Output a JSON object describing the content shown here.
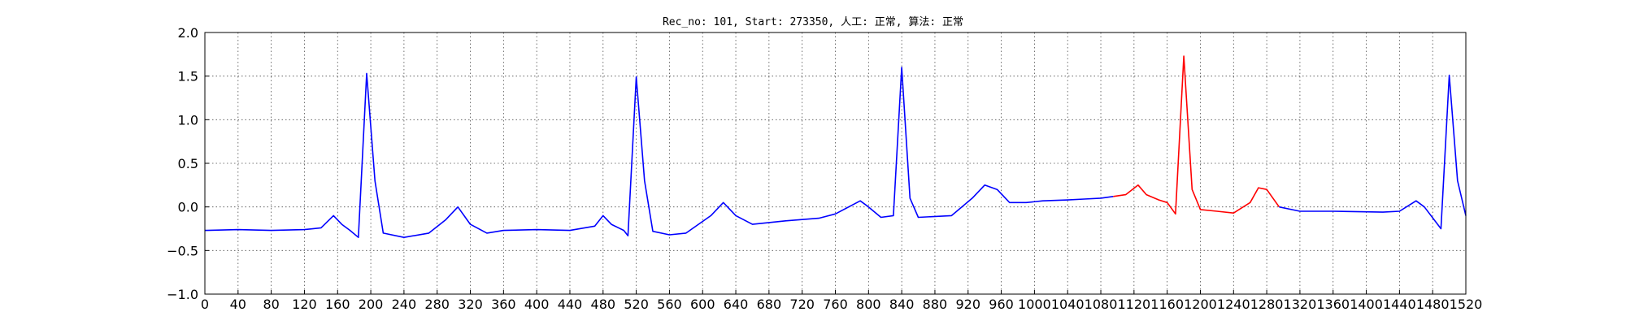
{
  "chart_data": {
    "type": "line",
    "title": "Rec_no: 101, Start: 273350, 人工: 正常, 算法: 正常",
    "xlabel": "",
    "ylabel": "",
    "xlim": [
      0,
      1520
    ],
    "ylim": [
      -1.0,
      2.0
    ],
    "x_ticks": [
      0,
      40,
      80,
      120,
      160,
      200,
      240,
      280,
      320,
      360,
      400,
      440,
      480,
      520,
      560,
      600,
      640,
      680,
      720,
      760,
      800,
      840,
      880,
      920,
      960,
      1000,
      1040,
      1080,
      1120,
      1160,
      1200,
      1240,
      1280,
      1320,
      1360,
      1400,
      1440,
      1480,
      1520
    ],
    "x_tick_labels": [
      "0",
      "40",
      "80",
      "120",
      "160",
      "200",
      "240",
      "280",
      "320",
      "360",
      "400",
      "440",
      "480",
      "520",
      "560",
      "600",
      "640",
      "680",
      "720",
      "760",
      "800",
      "840",
      "880",
      "920",
      "960",
      "1000",
      "1040",
      "1080",
      "1120",
      "1160",
      "1200",
      "1240",
      "1280",
      "1320",
      "1360",
      "1400",
      "1440",
      "1480",
      "1520"
    ],
    "y_ticks": [
      -1.0,
      -0.5,
      0.0,
      0.5,
      1.0,
      1.5,
      2.0
    ],
    "y_tick_labels": [
      "−1.0",
      "−0.5",
      "0.0",
      "0.5",
      "1.0",
      "1.5",
      "2.0"
    ],
    "grid": true,
    "colors": {
      "normal": "#0000ff",
      "highlight": "#ff0000"
    },
    "series": [
      {
        "color": "#0000ff",
        "points": [
          [
            0,
            -0.27
          ],
          [
            40,
            -0.26
          ],
          [
            80,
            -0.27
          ],
          [
            120,
            -0.26
          ],
          [
            140,
            -0.24
          ],
          [
            155,
            -0.1
          ],
          [
            165,
            -0.2
          ],
          [
            175,
            -0.27
          ],
          [
            185,
            -0.35
          ],
          [
            195,
            1.53
          ],
          [
            205,
            0.3
          ],
          [
            215,
            -0.3
          ],
          [
            240,
            -0.35
          ],
          [
            270,
            -0.3
          ],
          [
            290,
            -0.15
          ],
          [
            305,
            0.0
          ],
          [
            320,
            -0.2
          ],
          [
            340,
            -0.3
          ],
          [
            360,
            -0.27
          ],
          [
            400,
            -0.26
          ],
          [
            440,
            -0.27
          ],
          [
            470,
            -0.22
          ],
          [
            480,
            -0.1
          ],
          [
            490,
            -0.2
          ],
          [
            505,
            -0.27
          ],
          [
            510,
            -0.33
          ],
          [
            520,
            1.49
          ],
          [
            530,
            0.3
          ],
          [
            540,
            -0.28
          ],
          [
            560,
            -0.32
          ],
          [
            580,
            -0.3
          ],
          [
            610,
            -0.1
          ],
          [
            625,
            0.05
          ],
          [
            640,
            -0.1
          ],
          [
            660,
            -0.2
          ],
          [
            700,
            -0.16
          ],
          [
            740,
            -0.13
          ],
          [
            760,
            -0.08
          ],
          [
            790,
            0.07
          ],
          [
            800,
            0.0
          ],
          [
            815,
            -0.12
          ],
          [
            830,
            -0.1
          ],
          [
            840,
            1.6
          ],
          [
            850,
            0.1
          ],
          [
            860,
            -0.12
          ],
          [
            900,
            -0.1
          ],
          [
            925,
            0.1
          ],
          [
            940,
            0.25
          ],
          [
            955,
            0.2
          ],
          [
            970,
            0.05
          ],
          [
            990,
            0.05
          ],
          [
            1010,
            0.07
          ],
          [
            1040,
            0.08
          ],
          [
            1060,
            0.09
          ],
          [
            1080,
            0.1
          ],
          [
            1095,
            0.12
          ]
        ]
      },
      {
        "color": "#ff0000",
        "points": [
          [
            1095,
            0.12
          ],
          [
            1110,
            0.14
          ],
          [
            1125,
            0.25
          ],
          [
            1135,
            0.14
          ],
          [
            1150,
            0.08
          ],
          [
            1160,
            0.05
          ],
          [
            1170,
            -0.08
          ],
          [
            1180,
            1.73
          ],
          [
            1190,
            0.2
          ],
          [
            1200,
            -0.03
          ],
          [
            1220,
            -0.05
          ],
          [
            1240,
            -0.07
          ],
          [
            1260,
            0.05
          ],
          [
            1270,
            0.22
          ],
          [
            1280,
            0.2
          ],
          [
            1295,
            0.0
          ]
        ]
      },
      {
        "color": "#0000ff",
        "points": [
          [
            1295,
            0.0
          ],
          [
            1320,
            -0.05
          ],
          [
            1360,
            -0.05
          ],
          [
            1420,
            -0.06
          ],
          [
            1440,
            -0.05
          ],
          [
            1460,
            0.07
          ],
          [
            1470,
            0.0
          ],
          [
            1490,
            -0.25
          ],
          [
            1500,
            1.51
          ],
          [
            1510,
            0.3
          ],
          [
            1520,
            -0.1
          ]
        ]
      }
    ]
  }
}
